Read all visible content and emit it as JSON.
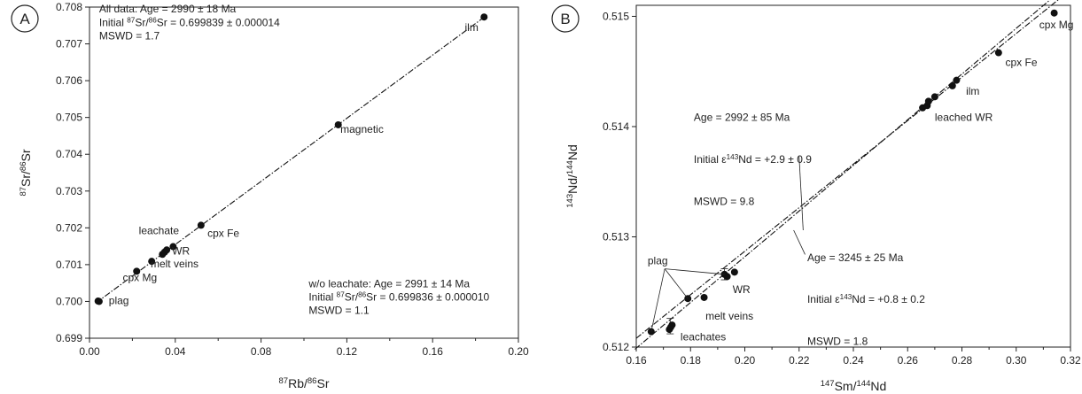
{
  "chart_data": [
    {
      "panel": "A",
      "type": "scatter",
      "xlabel": {
        "pre": "",
        "sup1": "87",
        "mid": "Rb/",
        "sup2": "86",
        "post": "Sr"
      },
      "ylabel": {
        "pre": "",
        "sup1": "87",
        "mid": "Sr/",
        "sup2": "86",
        "post": "Sr"
      },
      "xlim": [
        0.0,
        0.2
      ],
      "ylim": [
        0.699,
        0.708
      ],
      "xticks": [
        "0.00",
        "0.04",
        "0.08",
        "0.12",
        "0.16",
        "0.20"
      ],
      "xtick_values": [
        0.0,
        0.04,
        0.08,
        0.12,
        0.16,
        0.2
      ],
      "yticks": [
        "0.699",
        "0.700",
        "0.701",
        "0.702",
        "0.703",
        "0.704",
        "0.705",
        "0.706",
        "0.707",
        "0.708"
      ],
      "ytick_values": [
        0.699,
        0.7,
        0.701,
        0.702,
        0.703,
        0.704,
        0.705,
        0.706,
        0.707,
        0.708
      ],
      "points": [
        {
          "x": 0.004,
          "y": 0.70001
        },
        {
          "x": 0.0045,
          "y": 0.7
        },
        {
          "x": 0.022,
          "y": 0.70082
        },
        {
          "x": 0.029,
          "y": 0.70109
        },
        {
          "x": 0.034,
          "y": 0.70128
        },
        {
          "x": 0.035,
          "y": 0.70134
        },
        {
          "x": 0.036,
          "y": 0.7014
        },
        {
          "x": 0.039,
          "y": 0.70149
        },
        {
          "x": 0.052,
          "y": 0.70207
        },
        {
          "x": 0.116,
          "y": 0.7048
        },
        {
          "x": 0.184,
          "y": 0.70773
        }
      ],
      "fit_lines": [
        {
          "x": [
            0.003,
            0.186
          ],
          "y": [
            0.69996,
            0.70781
          ]
        }
      ],
      "point_labels": [
        {
          "text": "plag",
          "x": 0.009,
          "y": 0.69993
        },
        {
          "text": "cpx Mg",
          "x": 0.0155,
          "y": 0.70055
        },
        {
          "text": "melt veins",
          "x": 0.0285,
          "y": 0.70093
        },
        {
          "text": "WR",
          "x": 0.0385,
          "y": 0.70128
        },
        {
          "text": "leachate",
          "x": 0.023,
          "y": 0.70183
        },
        {
          "text": "cpx Fe",
          "x": 0.055,
          "y": 0.70175
        },
        {
          "text": "magnetic",
          "x": 0.117,
          "y": 0.70458
        },
        {
          "text": "ilm",
          "x": 0.175,
          "y": 0.70735
        }
      ],
      "annotations": [
        {
          "lines": [
            "All data: Age = 2990 ± 18 Ma"
          ],
          "x": 0.0045,
          "y": 0.70785
        },
        {
          "pre": "Initial ",
          "sup1": "87",
          "mid": "Sr/",
          "sup2": "86",
          "post": "Sr = 0.699839 ± 0.000014",
          "x": 0.0045,
          "y": 0.70748
        },
        {
          "lines": [
            "MSWD = 1.7"
          ],
          "x": 0.0045,
          "y": 0.70712
        },
        {
          "lines": [
            "w/o leachate: Age = 2991 ± 14 Ma"
          ],
          "x": 0.1022,
          "y": 0.70038
        },
        {
          "pre": "Initial ",
          "sup1": "87",
          "mid": "Sr/",
          "sup2": "86",
          "post": "Sr = 0.699836 ± 0.000010",
          "x": 0.1022,
          "y": 0.70002
        },
        {
          "lines": [
            "MSWD = 1.1"
          ],
          "x": 0.1022,
          "y": 0.69966
        }
      ]
    },
    {
      "panel": "B",
      "type": "scatter",
      "xlabel": {
        "pre": "",
        "sup1": "147",
        "mid": "Sm/",
        "sup2": "144",
        "post": "Nd"
      },
      "ylabel": {
        "pre": "",
        "sup1": "143",
        "mid": "Nd/",
        "sup2": "144",
        "post": "Nd"
      },
      "xlim": [
        0.16,
        0.32
      ],
      "ylim": [
        0.512,
        0.5151
      ],
      "xticks": [
        "0.16",
        "0.18",
        "0.20",
        "0.22",
        "0.24",
        "0.26",
        "0.28",
        "0.30",
        "0.32"
      ],
      "xtick_values": [
        0.16,
        0.18,
        0.2,
        0.22,
        0.24,
        0.26,
        0.28,
        0.3,
        0.32
      ],
      "yticks": [
        "0.512",
        "0.513",
        "0.514",
        "0.515"
      ],
      "ytick_values": [
        0.512,
        0.513,
        0.514,
        0.515
      ],
      "points": [
        {
          "x": 0.1655,
          "y": 0.51214
        },
        {
          "x": 0.1722,
          "y": 0.51216
        },
        {
          "x": 0.1727,
          "y": 0.51218
        },
        {
          "x": 0.1732,
          "y": 0.5122
        },
        {
          "x": 0.179,
          "y": 0.51244
        },
        {
          "x": 0.185,
          "y": 0.51245
        },
        {
          "x": 0.1925,
          "y": 0.51266
        },
        {
          "x": 0.1935,
          "y": 0.51264
        },
        {
          "x": 0.1962,
          "y": 0.51268
        },
        {
          "x": 0.2655,
          "y": 0.51417
        },
        {
          "x": 0.2672,
          "y": 0.51419
        },
        {
          "x": 0.2677,
          "y": 0.51423
        },
        {
          "x": 0.27,
          "y": 0.51427
        },
        {
          "x": 0.2765,
          "y": 0.51437
        },
        {
          "x": 0.278,
          "y": 0.51442
        },
        {
          "x": 0.2935,
          "y": 0.51467
        },
        {
          "x": 0.314,
          "y": 0.51503
        }
      ],
      "error_bars": [
        {
          "x": 0.1925,
          "y": 0.51266,
          "err": 5e-05
        },
        {
          "x": 0.1725,
          "y": 0.51219,
          "err": 7e-05
        }
      ],
      "fit_lines": [
        {
          "x": [
            0.1595,
            0.3125
          ],
          "y": [
            0.51198,
            0.51515
          ]
        },
        {
          "x": [
            0.16,
            0.3155
          ],
          "y": [
            0.51208,
            0.51515
          ]
        }
      ],
      "point_labels": [
        {
          "text": "plag",
          "x": 0.1642,
          "y": 0.51275
        },
        {
          "text": "WR",
          "x": 0.1955,
          "y": 0.51249
        },
        {
          "text": "melt veins",
          "x": 0.1855,
          "y": 0.51225
        },
        {
          "text": "leachates",
          "x": 0.1763,
          "y": 0.51206
        },
        {
          "text": "leached WR",
          "x": 0.27,
          "y": 0.51405
        },
        {
          "text": "ilm",
          "x": 0.2815,
          "y": 0.51429
        },
        {
          "text": "cpx Fe",
          "x": 0.296,
          "y": 0.51455
        },
        {
          "text": "cpx Mg",
          "x": 0.3085,
          "y": 0.51489
        }
      ],
      "plag_leader_origin": {
        "x": 0.1705,
        "y": 0.51271
      },
      "annotations": [
        {
          "lines": [
            "Age = 2992 ± 85 Ma"
          ],
          "x": 0.1812,
          "y": 0.51405
        },
        {
          "pre": "Initial ",
          "eps": "ε",
          "sup1": "143",
          "post": "Nd = +2.9 ± 0.9",
          "x": 0.1812,
          "y": 0.51367
        },
        {
          "lines": [
            "MSWD = 9.8"
          ],
          "x": 0.1812,
          "y": 0.51329
        },
        {
          "lines": [
            "Age = 3245 ± 25 Ma"
          ],
          "x": 0.223,
          "y": 0.51278
        },
        {
          "pre": "Initial ",
          "eps": "ε",
          "sup1": "143",
          "post": "Nd = +0.8 ± 0.2",
          "x": 0.223,
          "y": 0.5124
        },
        {
          "lines": [
            "MSWD = 1.8"
          ],
          "x": 0.223,
          "y": 0.51202
        }
      ],
      "callouts": [
        {
          "from": {
            "x": 0.22,
            "y": 0.51373
          },
          "to": {
            "x": 0.2215,
            "y": 0.51306
          }
        },
        {
          "from": {
            "x": 0.2222,
            "y": 0.51284
          },
          "to": {
            "x": 0.218,
            "y": 0.51306
          }
        }
      ]
    }
  ]
}
